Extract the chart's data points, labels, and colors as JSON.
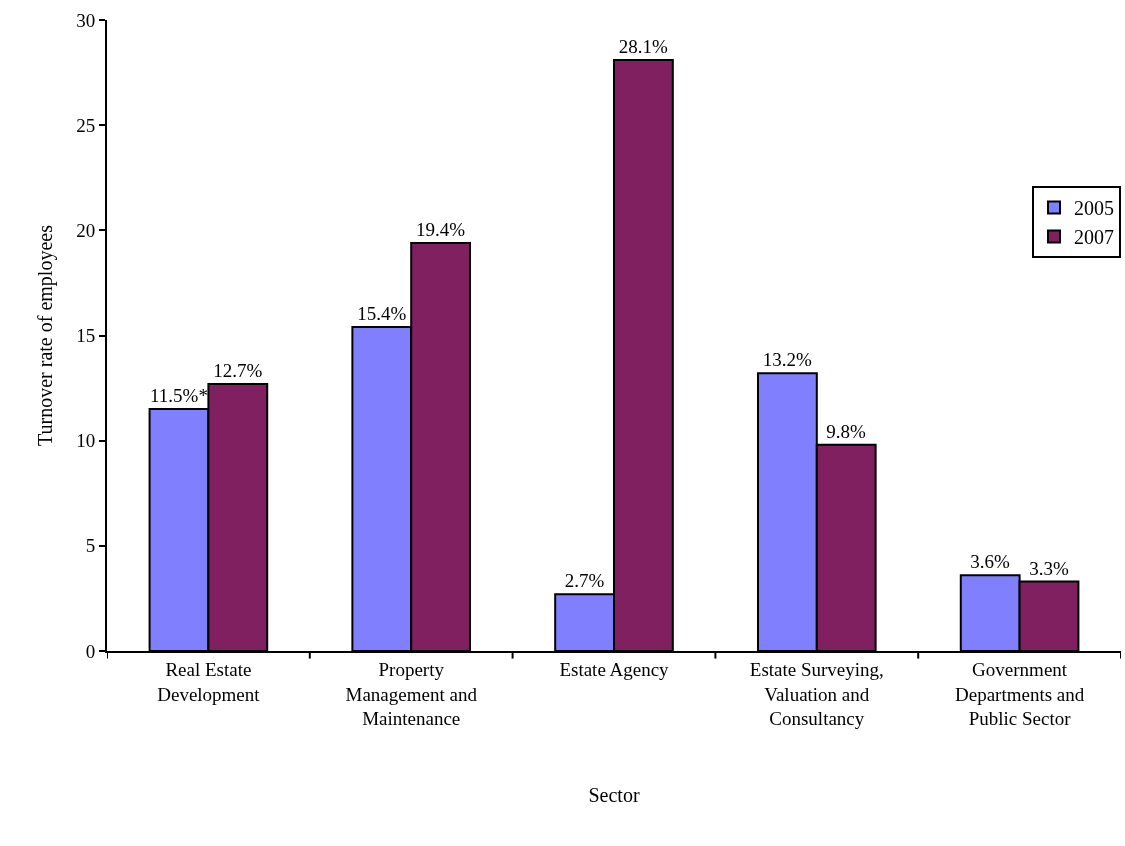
{
  "chart_data": {
    "type": "bar",
    "xlabel": "Sector",
    "ylabel": "Turnover rate of employees",
    "categories": [
      "Real Estate Development",
      "Property Management and Maintenance",
      "Estate Agency",
      "Estate Surveying, Valuation and Consultancy",
      "Government Departments and Public Sector"
    ],
    "series": [
      {
        "name": "2005",
        "color": "#8080ff",
        "values": [
          11.5,
          15.4,
          2.7,
          13.2,
          3.6
        ],
        "value_labels": [
          "11.5%*",
          "15.4%",
          "2.7%",
          "13.2%",
          "3.6%"
        ]
      },
      {
        "name": "2007",
        "color": "#802060",
        "values": [
          12.7,
          19.4,
          28.1,
          9.8,
          3.3
        ],
        "value_labels": [
          "12.7%",
          "19.4%",
          "28.1%",
          "9.8%",
          "3.3%"
        ]
      }
    ],
    "ylim": [
      0,
      30
    ],
    "yticks": [
      0,
      5,
      10,
      15,
      20,
      25,
      30
    ],
    "grid": false,
    "legend": "right"
  }
}
